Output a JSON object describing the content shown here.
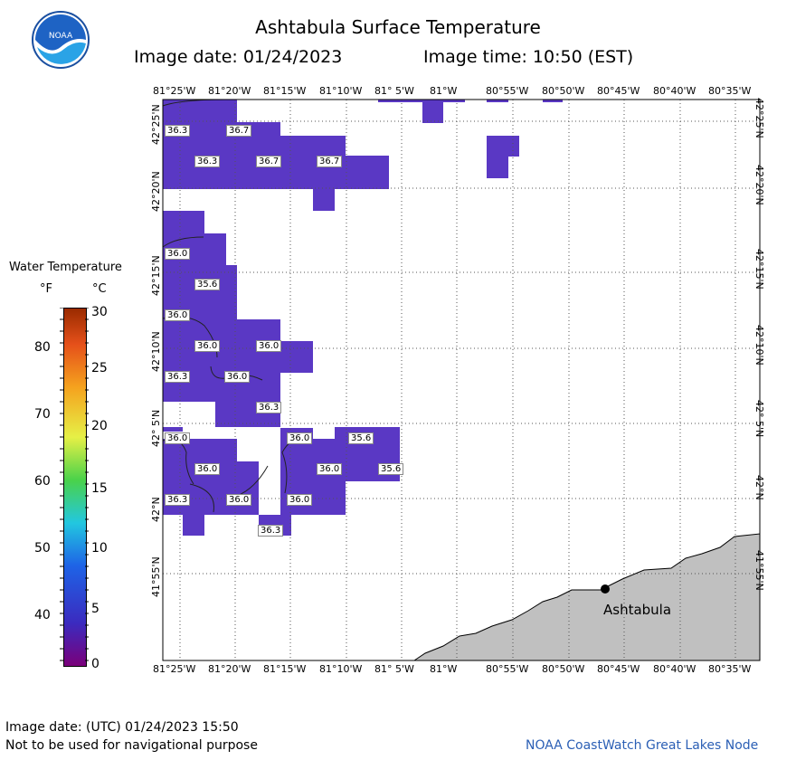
{
  "header": {
    "title": "Ashtabula Surface Temperature",
    "image_date": "Image date: 01/24/2023",
    "image_time": "Image time: 10:50 (EST)"
  },
  "axes": {
    "lon_labels": [
      "81°25'W",
      "81°20'W",
      "81°15'W",
      "81°10'W",
      "81° 5'W",
      "81°W",
      "80°55'W",
      "80°50'W",
      "80°45'W",
      "80°40'W",
      "80°35'W"
    ],
    "lat_labels": [
      "42°25'N",
      "42°20'N",
      "42°15'N",
      "42°10'N",
      "42° 5'N",
      "42°N",
      "41°55'N"
    ]
  },
  "legend": {
    "title": "Water Temperature",
    "unit_f": "°F",
    "unit_c": "°C",
    "f_ticks": [
      "80",
      "70",
      "60",
      "50",
      "40"
    ],
    "c_ticks": [
      "30",
      "25",
      "20",
      "15",
      "10",
      "5",
      "0"
    ]
  },
  "map": {
    "city": "Ashtabula",
    "temp_labels": [
      "36.3",
      "36.7",
      "36.3",
      "36.7",
      "36.7",
      "36.0",
      "35.6",
      "36.0",
      "36.0",
      "36.0",
      "36.3",
      "36.0",
      "36.3",
      "36.0",
      "36.0",
      "35.6",
      "36.0",
      "36.0",
      "35.6",
      "36.3",
      "36.0",
      "36.0",
      "36.3"
    ]
  },
  "footer": {
    "utc_date": "Image date: (UTC) 01/24/2023  15:50",
    "disclaimer": "Not to be used for navigational purpose",
    "credit": "NOAA CoastWatch Great Lakes Node"
  },
  "colors": {
    "water": "#5a38c4",
    "land": "#c0c0c0",
    "grid": "#555555"
  }
}
